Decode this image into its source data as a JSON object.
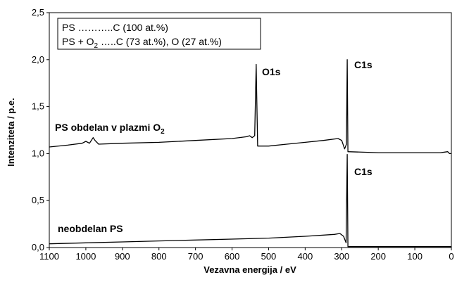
{
  "chart_data": {
    "type": "line",
    "xlabel": "Vezavna energija / eV",
    "ylabel": "Intenziteta / p.e.",
    "xlim": [
      1100,
      0
    ],
    "ylim": [
      0,
      2.5
    ],
    "x_ticks": [
      "1100",
      "1000",
      "900",
      "800",
      "700",
      "600",
      "500",
      "400",
      "300",
      "200",
      "100",
      "0"
    ],
    "y_ticks": [
      "0,0",
      "0,5",
      "1,0",
      "1,5",
      "2,0",
      "2,5"
    ],
    "grid": false,
    "legend": {
      "position": "top-left",
      "line1": "PS ………..C (100 at.%)",
      "line2_a": "PS + O",
      "line2_sub": "2",
      "line2_b": " …..C (73 at.%), O (27 at.%)"
    },
    "annotations": {
      "o1s": "O1s",
      "c1s_treated": "C1s",
      "c1s_untreated": "C1s",
      "treated_label": "PS obdelan v plazmi O",
      "treated_label_sub": "2",
      "untreated_label": "neobdelan PS"
    },
    "series": [
      {
        "points": [
          [
            1100,
            1.07
          ],
          [
            1050,
            1.09
          ],
          [
            1010,
            1.11
          ],
          [
            1000,
            1.13
          ],
          [
            990,
            1.11
          ],
          [
            980,
            1.17
          ],
          [
            975,
            1.14
          ],
          [
            965,
            1.1
          ],
          [
            900,
            1.11
          ],
          [
            800,
            1.12
          ],
          [
            700,
            1.14
          ],
          [
            600,
            1.16
          ],
          [
            560,
            1.18
          ],
          [
            552,
            1.19
          ],
          [
            545,
            1.17
          ],
          [
            538,
            1.19
          ],
          [
            534,
            1.95
          ],
          [
            530,
            1.08
          ],
          [
            500,
            1.08
          ],
          [
            450,
            1.1
          ],
          [
            400,
            1.12
          ],
          [
            350,
            1.14
          ],
          [
            310,
            1.16
          ],
          [
            300,
            1.14
          ],
          [
            292,
            1.05
          ],
          [
            287,
            1.1
          ],
          [
            285,
            2.0
          ],
          [
            283,
            1.02
          ],
          [
            200,
            1.01
          ],
          [
            100,
            1.01
          ],
          [
            30,
            1.01
          ],
          [
            10,
            1.02
          ],
          [
            5,
            1.0
          ],
          [
            0,
            1.0
          ]
        ]
      },
      {
        "points": [
          [
            1100,
            0.04
          ],
          [
            1000,
            0.05
          ],
          [
            900,
            0.06
          ],
          [
            800,
            0.07
          ],
          [
            700,
            0.08
          ],
          [
            600,
            0.09
          ],
          [
            500,
            0.1
          ],
          [
            400,
            0.12
          ],
          [
            320,
            0.14
          ],
          [
            305,
            0.15
          ],
          [
            295,
            0.12
          ],
          [
            288,
            0.05
          ],
          [
            285,
            0.99
          ],
          [
            283,
            0.01
          ],
          [
            200,
            0.01
          ],
          [
            100,
            0.01
          ],
          [
            0,
            0.01
          ]
        ]
      }
    ]
  }
}
